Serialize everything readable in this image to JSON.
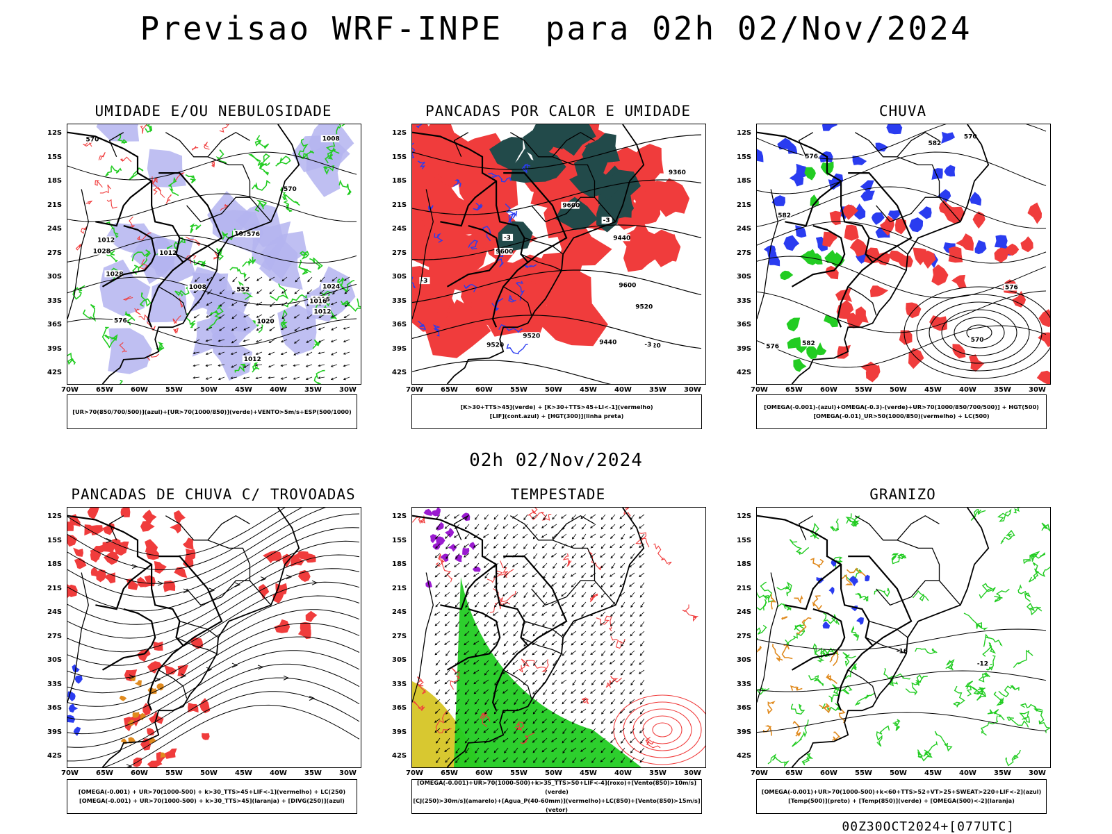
{
  "header": {
    "title": "Previsao WRF-INPE  para 02h 02/Nov/2024",
    "mid_title": "02h 02/Nov/2024",
    "footer": "00Z30OCT2024+[077UTC]"
  },
  "axes": {
    "lat_labels": [
      "12S",
      "15S",
      "18S",
      "21S",
      "24S",
      "27S",
      "30S",
      "33S",
      "36S",
      "39S",
      "42S"
    ],
    "lon_labels": [
      "70W",
      "65W",
      "60W",
      "55W",
      "50W",
      "45W",
      "40W",
      "35W",
      "30W"
    ]
  },
  "colors": {
    "lavender": "#b4b4f0",
    "green": "#22cc22",
    "red": "#f03c3c",
    "dark_teal": "#224a4a",
    "blue": "#2a3cf0",
    "orange": "#e08a1e",
    "purple": "#9a1ad0",
    "yellow": "#d8c830"
  },
  "panels": [
    {
      "title": "UMIDADE E/OU NEBULOSIDADE",
      "legend": [
        "[UR>70(850/700/500)](azul)+[UR>70(1000/850)](verde)+VENTO>5m/s+ESP(500/1000)"
      ],
      "labels": [
        "1012",
        "1012",
        "1016",
        "1012",
        "1016",
        "1008",
        "1012",
        "1020",
        "1008",
        "1024",
        "1028",
        "1012",
        "1028",
        "576",
        "570",
        "576",
        "570",
        "552"
      ]
    },
    {
      "title": "PANCADAS POR CALOR E UMIDADE",
      "legend": [
        "[K>30+TTS>45](verde) + [K>30+TTS>45+LI<-1](vermelho)",
        "[LIF](cont.azul) + [HGT(300)](linha preta)"
      ],
      "labels": [
        "9600",
        "9600",
        "9600",
        "9520",
        "9520",
        "9520",
        "9520",
        "9440",
        "9440",
        "9360",
        "-3",
        "-3",
        "-3",
        "-3"
      ]
    },
    {
      "title": "CHUVA",
      "legend": [
        "[OMEGA(-0.001)-(azul)+OMEGA(-0.3)-(verde)+UR>70(1000/850/700/500)] + HGT(500)",
        "[OMEGA(-0.01)_UR>50(1000/850)(vermelho) + LC(500)"
      ],
      "labels": [
        "582",
        "582",
        "582",
        "576",
        "576",
        "576",
        "570",
        "570"
      ]
    },
    {
      "title": "PANCADAS DE CHUVA C/ TROVOADAS",
      "legend": [
        "[OMEGA(-0.001) + UR>70(1000-500) + k>30_TTS>45+LIF<-1](vermelho) + LC(250)",
        "[OMEGA(-0.001) + UR>70(1000-500) + k>30_TTS>45](laranja) + [DIVG(250)](azul)"
      ],
      "labels": []
    },
    {
      "title": "TEMPESTADE",
      "legend": [
        "[OMEGA(-0.001)+UR>70(1000-500)+k>35_TTS>50+LIF<-4](roxo)+[Vento(850)>10m/s](verde)",
        "[CJ(250)>30m/s](amarelo)+[Agua_P(40-60mm)](vermelho)+LC(850)+[Vento(850)>15m/s](vetor)"
      ],
      "labels": []
    },
    {
      "title": "GRANIZO",
      "legend": [
        "[OMEGA(-0.001)+UR>70(1000-500)+k<60+TTS>52+VT>25+SWEAT>220+LIF<-2](azul)",
        "[Temp(500)](preto) + [Temp(850)](verde) + [OMEGA(500)<-2](laranja)"
      ],
      "labels": [
        "-12",
        "-16"
      ]
    }
  ]
}
